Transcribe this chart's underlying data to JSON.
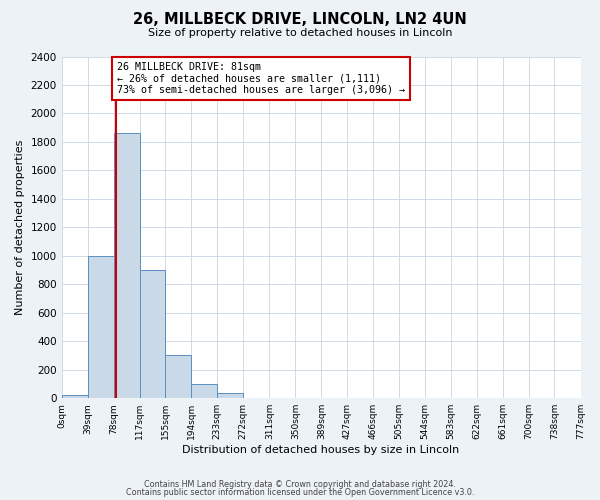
{
  "title": "26, MILLBECK DRIVE, LINCOLN, LN2 4UN",
  "subtitle": "Size of property relative to detached houses in Lincoln",
  "xlabel": "Distribution of detached houses by size in Lincoln",
  "ylabel": "Number of detached properties",
  "bar_edges": [
    0,
    39,
    78,
    117,
    155,
    194,
    233,
    272,
    311,
    350,
    389,
    427,
    466,
    505,
    544,
    583,
    622,
    661,
    700,
    738,
    777
  ],
  "bar_heights": [
    20,
    1000,
    1860,
    900,
    300,
    100,
    40,
    0,
    0,
    0,
    0,
    0,
    0,
    0,
    0,
    0,
    0,
    0,
    0,
    0
  ],
  "bar_color": "#c9d9e8",
  "bar_edge_color": "#5a8fc0",
  "vline_color": "#cc0000",
  "vline_x": 81,
  "annotation_text": "26 MILLBECK DRIVE: 81sqm\n← 26% of detached houses are smaller (1,111)\n73% of semi-detached houses are larger (3,096) →",
  "annotation_box_color": "#cc0000",
  "annotation_box_facecolor": "white",
  "ylim": [
    0,
    2400
  ],
  "yticks": [
    0,
    200,
    400,
    600,
    800,
    1000,
    1200,
    1400,
    1600,
    1800,
    2000,
    2200,
    2400
  ],
  "tick_labels": [
    "0sqm",
    "39sqm",
    "78sqm",
    "117sqm",
    "155sqm",
    "194sqm",
    "233sqm",
    "272sqm",
    "311sqm",
    "350sqm",
    "389sqm",
    "427sqm",
    "466sqm",
    "505sqm",
    "544sqm",
    "583sqm",
    "622sqm",
    "661sqm",
    "700sqm",
    "738sqm",
    "777sqm"
  ],
  "footer_line1": "Contains HM Land Registry data © Crown copyright and database right 2024.",
  "footer_line2": "Contains public sector information licensed under the Open Government Licence v3.0.",
  "bg_color": "#edf2f7",
  "plot_bg_color": "white",
  "grid_color": "#c8d4e0"
}
